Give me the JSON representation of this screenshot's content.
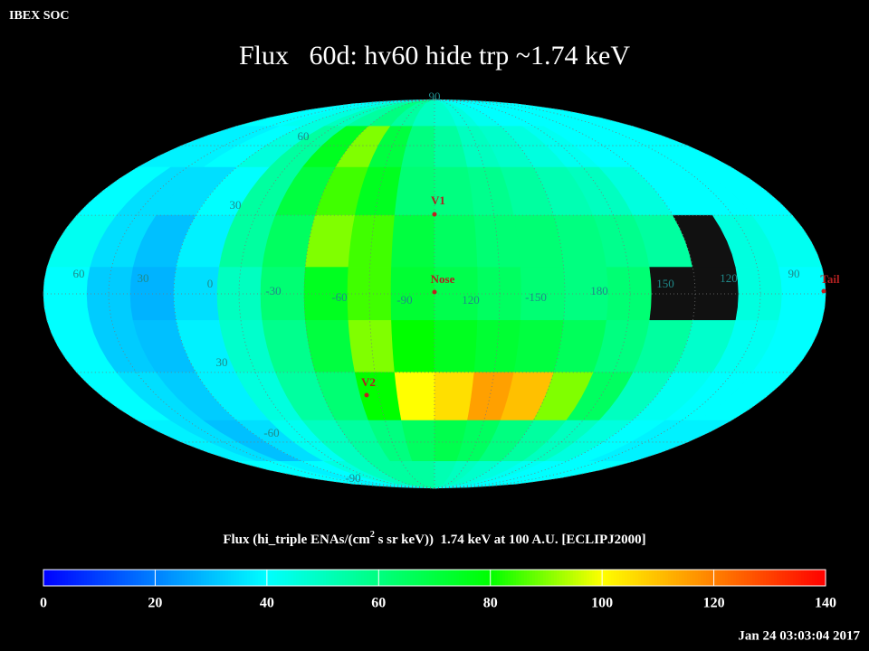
{
  "chart_data": {
    "type": "heatmap",
    "projection": "mollweide",
    "corner_label": "IBEX SOC",
    "title": "Flux   60d: hv60 hide trp ~1.74 keV",
    "timestamp": "Jan 24 03:03:04 2017",
    "colorbar_label": [
      "Flux (hi_triple ENAs/(cm",
      "2",
      " s sr keV))  1.74 keV at 100 A.U. [ECLIPJ2000]"
    ],
    "zlim": [
      0,
      140
    ],
    "zticks": [
      0,
      20,
      40,
      60,
      80,
      100,
      120,
      140
    ],
    "colormap": [
      "#0000ff",
      "#0080ff",
      "#00ffff",
      "#00ff80",
      "#00ff00",
      "#ffff00",
      "#ff8000",
      "#ff0000"
    ],
    "missing_color": "#111111",
    "grid": true,
    "grid_labels": [
      "90",
      "60",
      "30",
      "60",
      "30",
      "0",
      "-30",
      "-60",
      "-90",
      "120",
      "-150",
      "180",
      "150",
      "120",
      "90",
      "30",
      "-60",
      "-90"
    ],
    "markers": [
      "V1",
      "Nose",
      "V2",
      "Tail"
    ],
    "z": [
      [
        40,
        40,
        42,
        45,
        50,
        55,
        60,
        55,
        50,
        48,
        45,
        42,
        40,
        40,
        40,
        40,
        40,
        40
      ],
      [
        38,
        38,
        40,
        45,
        55,
        75,
        90,
        70,
        60,
        55,
        50,
        48,
        45,
        42,
        40,
        40,
        40,
        40
      ],
      [
        40,
        35,
        35,
        40,
        55,
        70,
        85,
        75,
        62,
        60,
        58,
        55,
        52,
        50,
        45,
        40,
        40,
        40
      ],
      [
        42,
        35,
        30,
        38,
        55,
        65,
        90,
        85,
        70,
        65,
        62,
        62,
        60,
        58,
        55,
        null,
        45,
        42
      ],
      [
        40,
        32,
        28,
        35,
        50,
        62,
        75,
        85,
        72,
        68,
        65,
        62,
        60,
        62,
        null,
        null,
        45,
        40
      ],
      [
        40,
        32,
        30,
        38,
        48,
        58,
        70,
        90,
        80,
        75,
        72,
        70,
        66,
        60,
        55,
        48,
        42,
        40
      ],
      [
        40,
        35,
        32,
        38,
        45,
        55,
        62,
        80,
        100,
        105,
        115,
        110,
        90,
        65,
        50,
        42,
        40,
        40
      ],
      [
        38,
        35,
        30,
        35,
        42,
        50,
        55,
        60,
        65,
        68,
        65,
        60,
        55,
        50,
        45,
        40,
        38,
        38
      ],
      [
        40,
        40,
        38,
        40,
        45,
        50,
        55,
        55,
        55,
        52,
        50,
        48,
        45,
        42,
        40,
        40,
        40,
        40
      ]
    ]
  }
}
